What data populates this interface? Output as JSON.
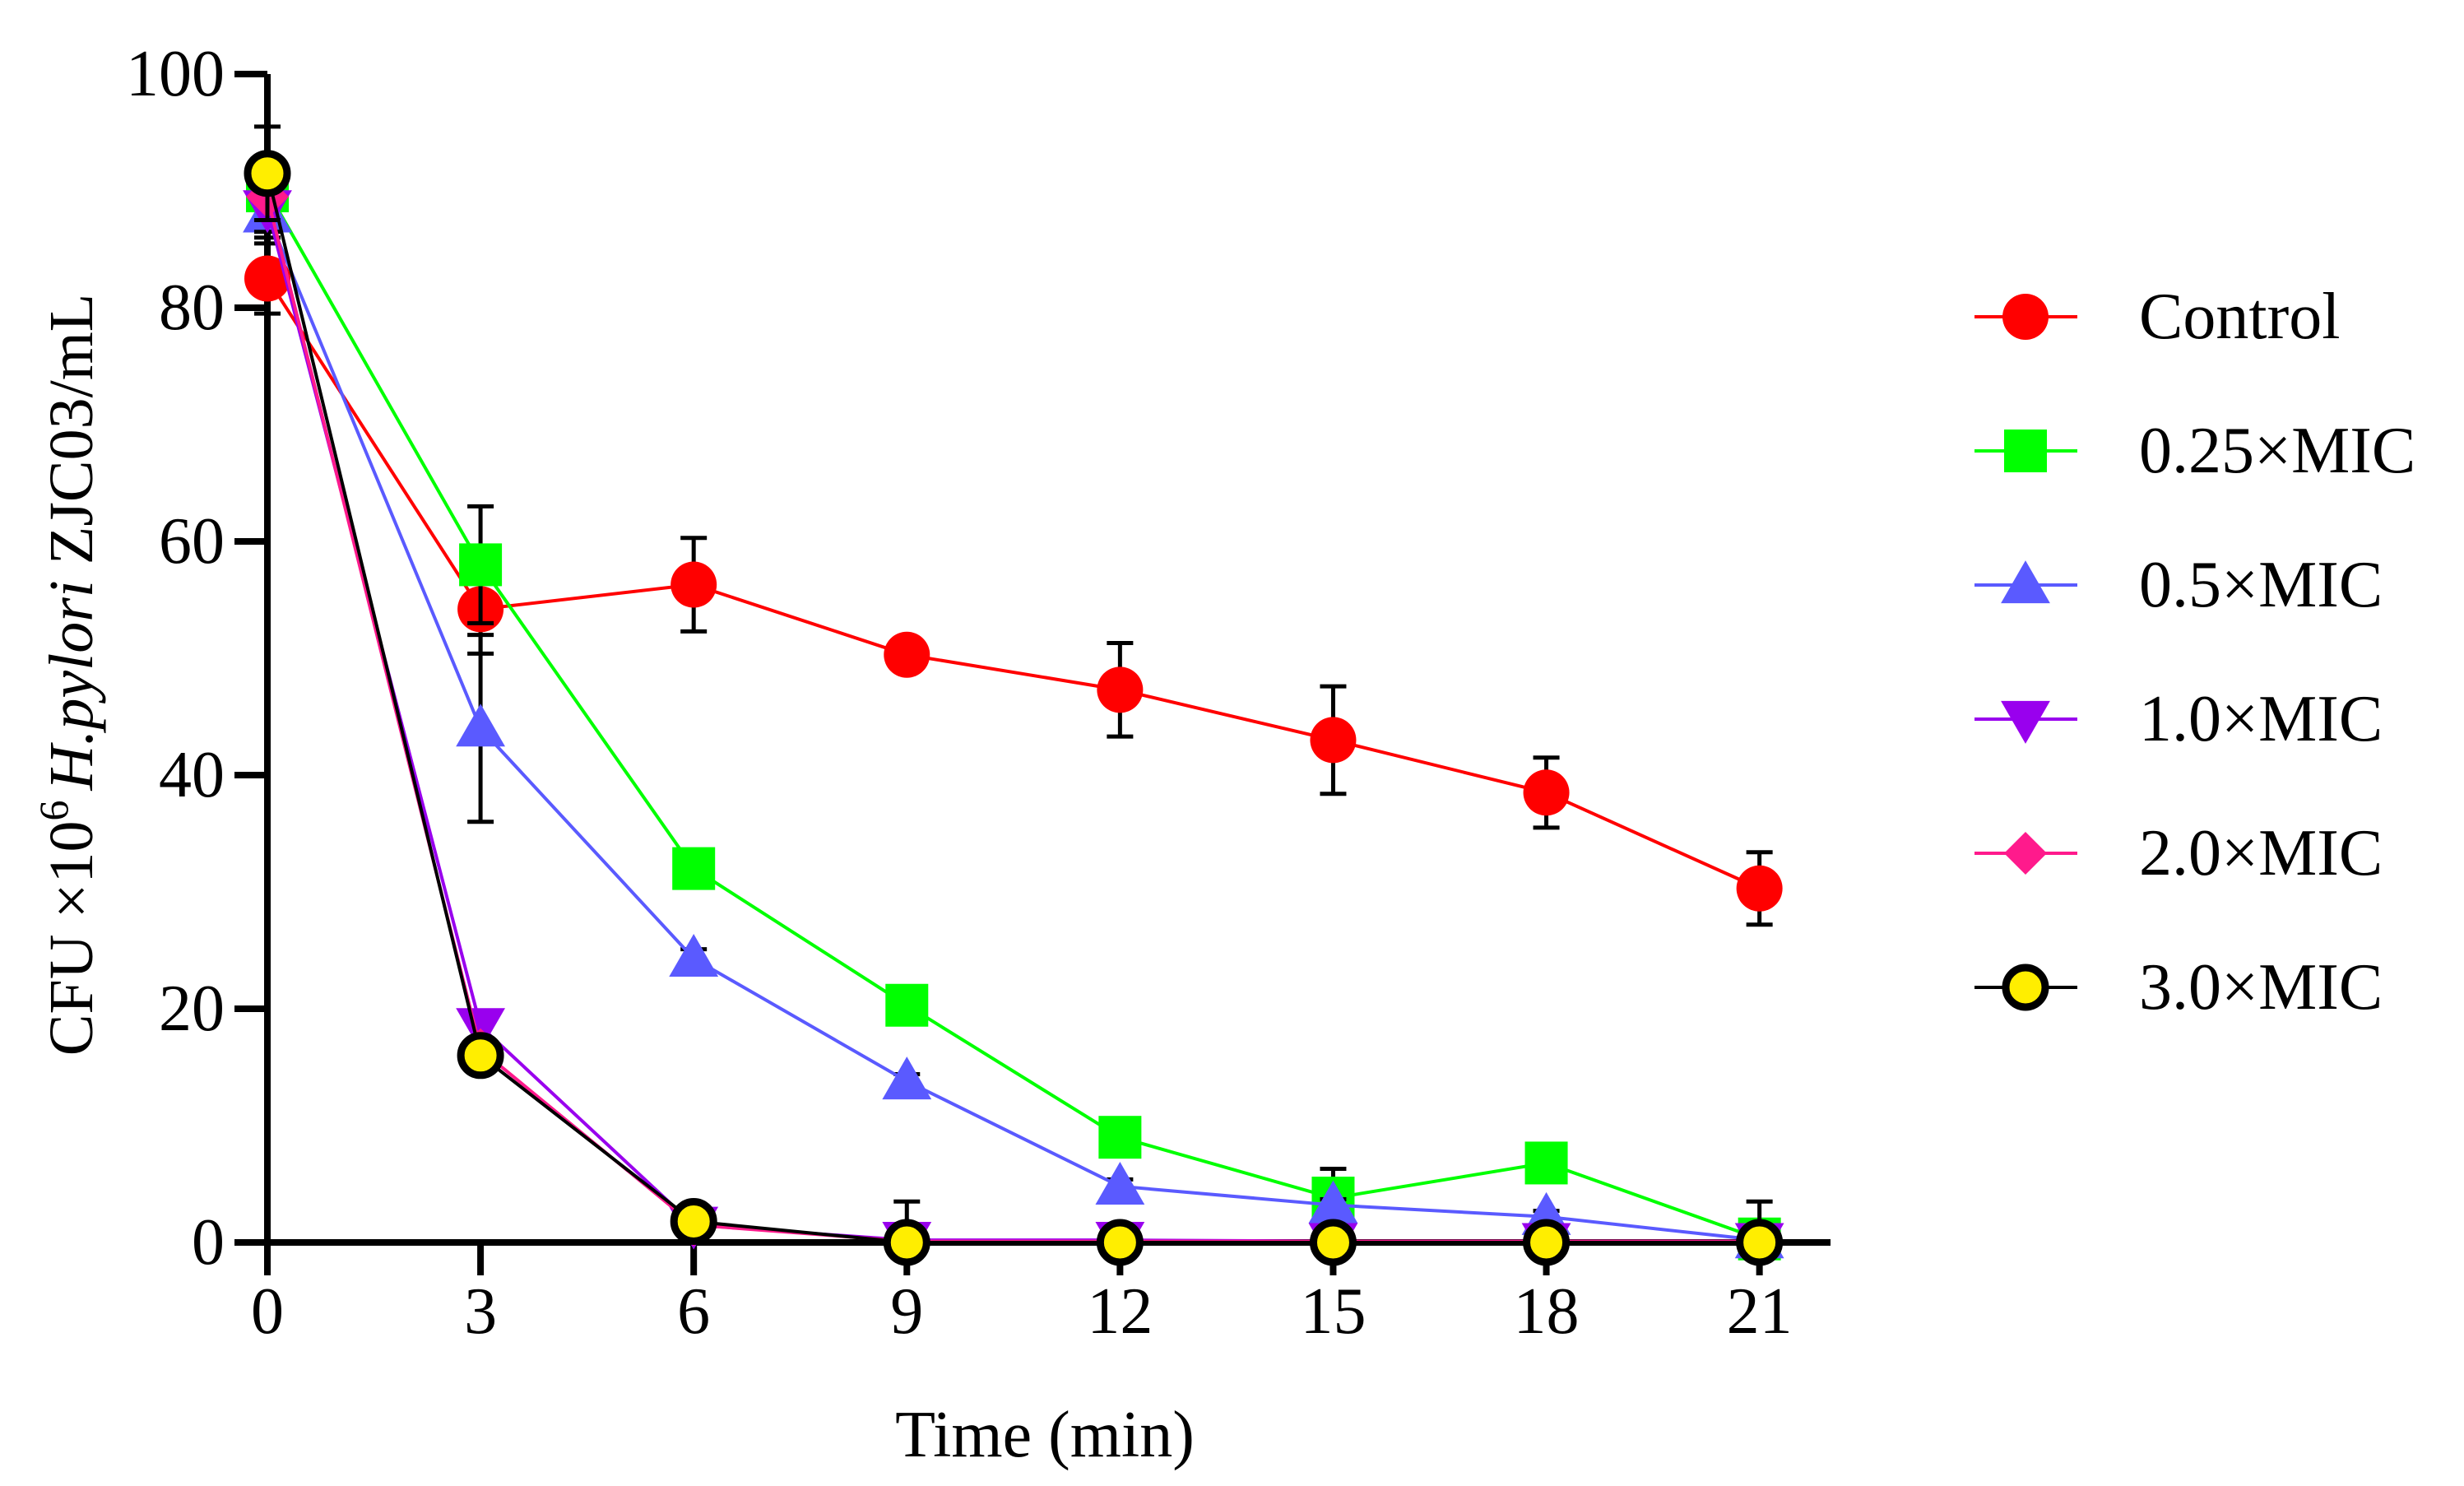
{
  "chart_data": {
    "type": "line",
    "xlabel": "Time (min)",
    "ylabel_parts": {
      "prefix": "CFU ×10",
      "exponent": "6",
      "organism": "H.pylori",
      "suffix": " ZJC03/mL"
    },
    "x": [
      0,
      3,
      6,
      9,
      12,
      15,
      18,
      21
    ],
    "xlim": [
      0,
      22
    ],
    "ylim": [
      0,
      100
    ],
    "xticks": [
      0,
      3,
      6,
      9,
      12,
      15,
      18,
      21
    ],
    "yticks": [
      0,
      20,
      40,
      60,
      80,
      100
    ],
    "legend_position": "right",
    "series": [
      {
        "name": "Control",
        "color": "#ff0000",
        "marker": "circle",
        "values": [
          82.5,
          54.2,
          56.3,
          50.3,
          47.3,
          43.0,
          38.5,
          30.3
        ],
        "errors": [
          3.0,
          3.8,
          4.0,
          0.8,
          4.0,
          4.6,
          3.0,
          3.1
        ]
      },
      {
        "name": "0.25×MIC",
        "color": "#00ff00",
        "marker": "square",
        "values": [
          90.0,
          58.0,
          32.0,
          20.3,
          9.0,
          3.8,
          6.8,
          0.3
        ],
        "errors": [
          2.0,
          5.0,
          0.8,
          0.6,
          0.5,
          2.5,
          0.6,
          0.3
        ]
      },
      {
        "name": "0.5×MIC",
        "color": "#5a5aff",
        "marker": "triangle-up",
        "values": [
          88.0,
          44.0,
          24.3,
          13.8,
          4.8,
          3.2,
          2.2,
          0.2
        ],
        "errors": [
          2.0,
          8.0,
          0.8,
          0.6,
          0.6,
          0.5,
          0.5,
          0.2
        ]
      },
      {
        "name": "1.0×MIC",
        "color": "#9900ee",
        "marker": "triangle-down",
        "values": [
          88.5,
          18.5,
          1.5,
          0.2,
          0.2,
          0.1,
          0.1,
          0.1
        ],
        "errors": [
          2.0,
          1.0,
          0.5,
          0.3,
          0.3,
          0.2,
          0.2,
          0.2
        ]
      },
      {
        "name": "2.0×MIC",
        "color": "#ff1a8c",
        "marker": "diamond",
        "values": [
          89.5,
          16.5,
          1.5,
          0.1,
          0.1,
          0.1,
          0.1,
          0.1
        ],
        "errors": [
          2.0,
          1.0,
          0.5,
          0.3,
          0.3,
          0.2,
          0.2,
          0.2
        ]
      },
      {
        "name": "3.0×MIC",
        "color": "#000000",
        "fill": "#ffee00",
        "marker": "circle-outline",
        "values": [
          91.5,
          16.0,
          1.8,
          0.0,
          0.0,
          0.0,
          0.0,
          0.0
        ],
        "errors": [
          4.0,
          1.0,
          0.6,
          3.5,
          0.5,
          0.5,
          0.5,
          3.5
        ]
      }
    ]
  }
}
